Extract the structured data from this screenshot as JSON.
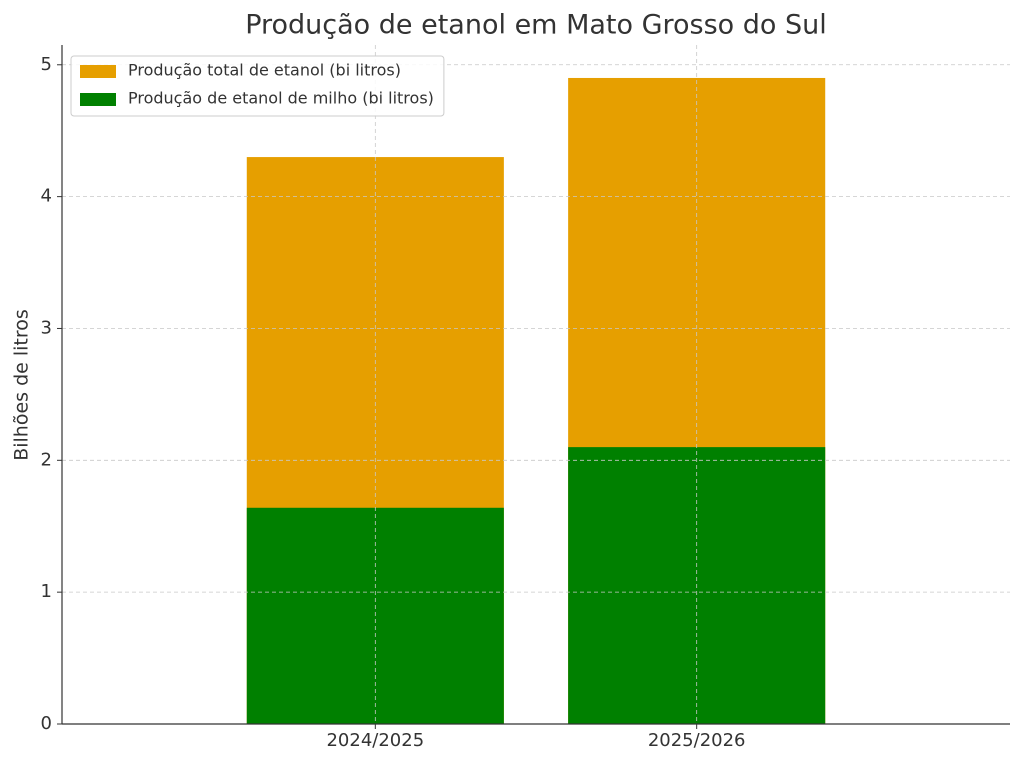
{
  "chart_data": {
    "type": "bar",
    "title": "Produção de etanol em Mato Grosso do Sul",
    "ylabel": "Bilhões de litros",
    "categories": [
      "2024/2025",
      "2025/2026"
    ],
    "series": [
      {
        "name": "Produção total de etanol (bi litros)",
        "color": "#e69f00",
        "values": [
          4.3,
          4.9
        ]
      },
      {
        "name": "Produção de etanol de milho (bi litros)",
        "color": "#008000",
        "values": [
          1.64,
          2.1
        ]
      }
    ],
    "ylim": [
      0,
      5.15
    ],
    "yticks": [
      0,
      1,
      2,
      3,
      4,
      5
    ],
    "grid": true,
    "legend": "upper left"
  }
}
